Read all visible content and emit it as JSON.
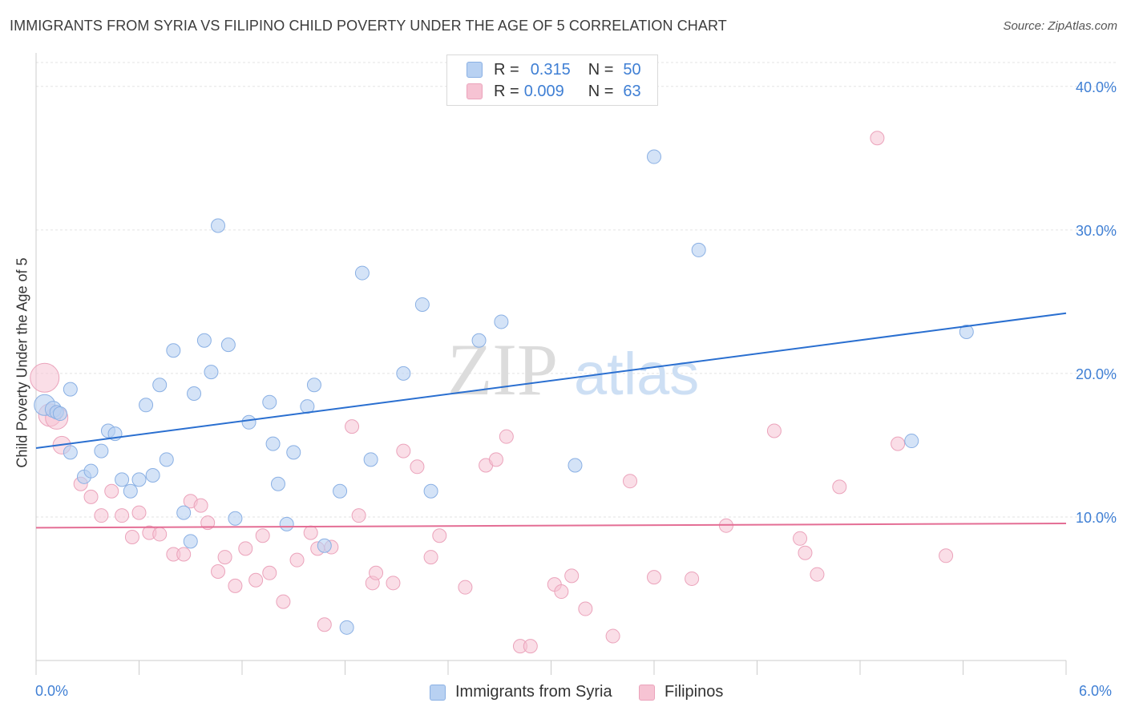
{
  "title": "IMMIGRANTS FROM SYRIA VS FILIPINO CHILD POVERTY UNDER THE AGE OF 5 CORRELATION CHART",
  "source": "Source: ZipAtlas.com",
  "watermark": {
    "zip": "ZIP",
    "atlas": "atlas"
  },
  "legend": {
    "rows": [
      {
        "r_label": "R =",
        "r_value": "0.315",
        "n_label": "N =",
        "n_value": "50"
      },
      {
        "r_label": "R =",
        "r_value": "0.009",
        "n_label": "N =",
        "n_value": "63"
      }
    ]
  },
  "colors": {
    "syria_fill": "#b8d1f2",
    "syria_stroke": "#8ab0e4",
    "syria_line": "#2a6fd0",
    "filipino_fill": "#f6c3d3",
    "filipino_stroke": "#eba3bb",
    "filipino_line": "#e46e95",
    "tick_text": "#3f7fd4"
  },
  "chart_data": {
    "type": "scatter",
    "title": "IMMIGRANTS FROM SYRIA VS FILIPINO CHILD POVERTY UNDER THE AGE OF 5 CORRELATION CHART",
    "xlabel": "",
    "ylabel": "Child Poverty Under the Age of 5",
    "xlim": [
      0,
      6
    ],
    "ylim": [
      0,
      42
    ],
    "x_tick_labels": [
      "0.0%",
      "6.0%"
    ],
    "y_ticks": [
      10,
      20,
      30,
      40
    ],
    "y_tick_labels": [
      "10.0%",
      "20.0%",
      "30.0%",
      "40.0%"
    ],
    "grid": true,
    "legend_position": "top-center",
    "series": [
      {
        "name": "Immigrants from Syria",
        "R": 0.315,
        "N": 50,
        "trend": {
          "x": [
            0,
            6
          ],
          "y": [
            14.8,
            24.2
          ]
        },
        "points": [
          [
            0.05,
            17.8
          ],
          [
            0.1,
            17.5
          ],
          [
            0.12,
            17.3
          ],
          [
            0.2,
            18.9
          ],
          [
            0.2,
            14.5
          ],
          [
            0.28,
            12.8
          ],
          [
            0.32,
            13.2
          ],
          [
            0.38,
            14.6
          ],
          [
            0.42,
            16.0
          ],
          [
            0.46,
            15.8
          ],
          [
            0.5,
            12.6
          ],
          [
            0.55,
            11.8
          ],
          [
            0.6,
            12.6
          ],
          [
            0.64,
            17.8
          ],
          [
            0.68,
            12.9
          ],
          [
            0.72,
            19.2
          ],
          [
            0.76,
            14.0
          ],
          [
            0.8,
            21.6
          ],
          [
            0.86,
            10.3
          ],
          [
            0.9,
            8.3
          ],
          [
            0.92,
            18.6
          ],
          [
            0.98,
            22.3
          ],
          [
            1.02,
            20.1
          ],
          [
            1.06,
            30.3
          ],
          [
            1.12,
            22.0
          ],
          [
            1.16,
            9.9
          ],
          [
            1.24,
            16.6
          ],
          [
            1.36,
            18.0
          ],
          [
            1.38,
            15.1
          ],
          [
            1.41,
            12.3
          ],
          [
            1.46,
            9.5
          ],
          [
            1.5,
            14.5
          ],
          [
            1.58,
            17.7
          ],
          [
            1.62,
            19.2
          ],
          [
            1.68,
            8.0
          ],
          [
            1.77,
            11.8
          ],
          [
            1.81,
            2.3
          ],
          [
            1.9,
            27.0
          ],
          [
            1.95,
            14.0
          ],
          [
            2.14,
            20.0
          ],
          [
            2.25,
            24.8
          ],
          [
            2.3,
            11.8
          ],
          [
            2.58,
            22.3
          ],
          [
            2.71,
            23.6
          ],
          [
            3.14,
            13.6
          ],
          [
            3.6,
            35.1
          ],
          [
            3.86,
            28.6
          ],
          [
            5.1,
            15.3
          ],
          [
            5.42,
            22.9
          ],
          [
            0.14,
            17.2
          ]
        ]
      },
      {
        "name": "Filipinos",
        "R": 0.009,
        "N": 63,
        "trend": {
          "x": [
            0,
            6
          ],
          "y": [
            9.25,
            9.55
          ]
        },
        "points": [
          [
            0.05,
            19.7
          ],
          [
            0.08,
            17.1
          ],
          [
            0.12,
            16.9
          ],
          [
            0.15,
            15.0
          ],
          [
            0.26,
            12.3
          ],
          [
            0.32,
            11.4
          ],
          [
            0.38,
            10.1
          ],
          [
            0.44,
            11.8
          ],
          [
            0.5,
            10.1
          ],
          [
            0.56,
            8.6
          ],
          [
            0.6,
            10.3
          ],
          [
            0.66,
            8.9
          ],
          [
            0.72,
            8.8
          ],
          [
            0.8,
            7.4
          ],
          [
            0.86,
            7.4
          ],
          [
            0.9,
            11.1
          ],
          [
            0.96,
            10.8
          ],
          [
            1.0,
            9.6
          ],
          [
            1.06,
            6.2
          ],
          [
            1.1,
            7.2
          ],
          [
            1.16,
            5.2
          ],
          [
            1.22,
            7.8
          ],
          [
            1.28,
            5.6
          ],
          [
            1.32,
            8.7
          ],
          [
            1.36,
            6.1
          ],
          [
            1.44,
            4.1
          ],
          [
            1.52,
            7.0
          ],
          [
            1.6,
            8.9
          ],
          [
            1.64,
            7.8
          ],
          [
            1.68,
            2.5
          ],
          [
            1.72,
            7.9
          ],
          [
            1.84,
            16.3
          ],
          [
            1.88,
            10.1
          ],
          [
            1.96,
            5.4
          ],
          [
            1.98,
            6.1
          ],
          [
            2.08,
            5.4
          ],
          [
            2.14,
            14.6
          ],
          [
            2.22,
            13.5
          ],
          [
            2.3,
            7.2
          ],
          [
            2.35,
            8.7
          ],
          [
            2.5,
            5.1
          ],
          [
            2.62,
            13.6
          ],
          [
            2.68,
            14.0
          ],
          [
            2.74,
            15.6
          ],
          [
            2.82,
            1.0
          ],
          [
            2.88,
            1.0
          ],
          [
            3.02,
            5.3
          ],
          [
            3.06,
            4.8
          ],
          [
            3.12,
            5.9
          ],
          [
            3.2,
            3.6
          ],
          [
            3.36,
            1.7
          ],
          [
            3.46,
            12.5
          ],
          [
            3.6,
            5.8
          ],
          [
            3.82,
            5.7
          ],
          [
            4.02,
            9.4
          ],
          [
            4.3,
            16.0
          ],
          [
            4.45,
            8.5
          ],
          [
            4.48,
            7.5
          ],
          [
            4.55,
            6.0
          ],
          [
            4.68,
            12.1
          ],
          [
            4.9,
            36.4
          ],
          [
            5.02,
            15.1
          ],
          [
            5.3,
            7.3
          ]
        ]
      }
    ]
  },
  "bottom_legend": {
    "items": [
      {
        "label": "Immigrants from Syria"
      },
      {
        "label": "Filipinos"
      }
    ]
  }
}
